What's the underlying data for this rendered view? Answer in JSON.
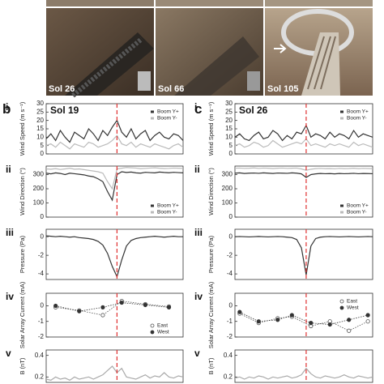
{
  "photos": [
    {
      "label": "Sol 26"
    },
    {
      "label": "Sol 66"
    },
    {
      "label": "Sol 105"
    }
  ],
  "sections": [
    {
      "letter": "b"
    },
    {
      "letter": "c"
    }
  ],
  "chart_data": [
    {
      "type": "line",
      "panel": "i",
      "title": "Sol 19",
      "y_label": "Wind Speed (m s⁻¹)",
      "xlim": [
        0,
        29
      ],
      "ylim": [
        0,
        30
      ],
      "yticks": [
        0,
        5,
        10,
        15,
        20,
        25,
        30
      ],
      "event_x": 15,
      "legend": "upper right",
      "series": [
        {
          "name": "Boom Y+",
          "color": "#333333",
          "values": [
            9,
            12,
            8,
            14,
            10,
            7,
            13,
            11,
            9,
            15,
            12,
            8,
            14,
            11,
            16,
            20,
            13,
            10,
            15,
            9,
            12,
            14,
            8,
            11,
            13,
            10,
            9,
            12,
            11,
            8
          ]
        },
        {
          "name": "Boom Y-",
          "color": "#bbbbbb",
          "values": [
            5,
            6,
            4,
            7,
            5,
            3,
            6,
            5,
            4,
            7,
            6,
            4,
            5,
            6,
            8,
            11,
            6,
            5,
            7,
            4,
            6,
            5,
            4,
            6,
            5,
            4,
            3,
            5,
            6,
            4
          ]
        }
      ]
    },
    {
      "type": "line",
      "panel": "ii",
      "y_label": "Wind Direction (°)",
      "xlim": [
        0,
        29
      ],
      "ylim": [
        0,
        360
      ],
      "yticks": [
        0,
        100,
        200,
        300
      ],
      "event_x": 15,
      "legend": "lower right",
      "series": [
        {
          "name": "Boom Y+",
          "color": "#333333",
          "values": [
            310,
            305,
            312,
            308,
            300,
            310,
            306,
            302,
            298,
            290,
            285,
            270,
            250,
            180,
            120,
            300,
            320,
            315,
            318,
            312,
            310,
            316,
            314,
            312,
            318,
            315,
            313,
            316,
            314,
            312
          ]
        },
        {
          "name": "Boom Y-",
          "color": "#bbbbbb",
          "values": [
            340,
            338,
            342,
            336,
            340,
            345,
            338,
            340,
            335,
            330,
            325,
            320,
            310,
            250,
            200,
            340,
            345,
            350,
            348,
            346,
            342,
            344,
            346,
            348,
            345,
            343,
            344,
            346,
            345,
            344
          ]
        }
      ]
    },
    {
      "type": "line",
      "panel": "iii",
      "y_label": "Pressure (Pa)",
      "xlim": [
        0,
        29
      ],
      "ylim": [
        -4.6,
        0.8
      ],
      "yticks": [
        -4,
        -2,
        0
      ],
      "event_x": 15,
      "series": [
        {
          "color": "#333333",
          "values": [
            0.1,
            0.05,
            0,
            0.05,
            0,
            -0.05,
            0,
            -0.1,
            -0.15,
            -0.2,
            -0.3,
            -0.5,
            -0.9,
            -1.8,
            -3.2,
            -4.3,
            -2.5,
            -1.0,
            -0.4,
            -0.2,
            -0.1,
            -0.05,
            0,
            0.05,
            0,
            -0.05,
            0,
            0.05,
            0,
            0
          ]
        }
      ]
    },
    {
      "type": "line",
      "panel": "iv",
      "y_label": "Solar Array Current (mA)",
      "xlim": [
        0,
        29
      ],
      "ylim": [
        -2,
        0.8
      ],
      "yticks": [
        -2,
        -1,
        0
      ],
      "event_x": 15,
      "legend": "lower right",
      "x": [
        2,
        7,
        12,
        16,
        21,
        26
      ],
      "series": [
        {
          "name": "East",
          "color": "#555555",
          "marker": "open",
          "values": [
            -0.1,
            -0.3,
            -0.6,
            0.3,
            0.1,
            -0.05
          ]
        },
        {
          "name": "West",
          "color": "#333333",
          "marker": "filled",
          "values": [
            0,
            -0.35,
            -0.1,
            0.2,
            0.05,
            -0.1
          ]
        }
      ]
    },
    {
      "type": "line",
      "panel": "v",
      "y_label": "B (nT)",
      "xlim": [
        0,
        29
      ],
      "ylim": [
        0.15,
        0.45
      ],
      "yticks": [
        0.2,
        0.4
      ],
      "event_x": 15,
      "series": [
        {
          "color": "#aaaaaa",
          "values": [
            0.18,
            0.17,
            0.2,
            0.18,
            0.19,
            0.17,
            0.2,
            0.18,
            0.19,
            0.2,
            0.18,
            0.2,
            0.22,
            0.26,
            0.3,
            0.24,
            0.28,
            0.2,
            0.19,
            0.18,
            0.2,
            0.22,
            0.19,
            0.21,
            0.2,
            0.24,
            0.2,
            0.19,
            0.21,
            0.2
          ]
        }
      ]
    },
    {
      "type": "line",
      "panel": "i",
      "title": "Sol 26",
      "y_label": "Wind Speed (m s⁻¹)",
      "xlim": [
        0,
        29
      ],
      "ylim": [
        0,
        30
      ],
      "yticks": [
        0,
        5,
        10,
        15,
        20,
        25,
        30
      ],
      "event_x": 15,
      "legend": "upper right",
      "series": [
        {
          "name": "Boom Y+",
          "color": "#333333",
          "values": [
            10,
            12,
            9,
            8,
            11,
            13,
            9,
            10,
            14,
            12,
            8,
            11,
            9,
            13,
            12,
            17,
            10,
            12,
            11,
            9,
            13,
            10,
            12,
            11,
            9,
            14,
            10,
            12,
            11,
            10
          ]
        },
        {
          "name": "Boom Y-",
          "color": "#bbbbbb",
          "values": [
            5,
            6,
            4,
            5,
            7,
            6,
            4,
            5,
            8,
            6,
            4,
            5,
            6,
            7,
            6,
            9,
            5,
            6,
            5,
            4,
            6,
            5,
            6,
            5,
            4,
            7,
            5,
            6,
            5,
            4
          ]
        }
      ]
    },
    {
      "type": "line",
      "panel": "ii",
      "y_label": "Wind Direction (°)",
      "xlim": [
        0,
        29
      ],
      "ylim": [
        0,
        360
      ],
      "yticks": [
        0,
        100,
        200,
        300
      ],
      "event_x": 15,
      "legend": "lower right",
      "series": [
        {
          "name": "Boom Y+",
          "color": "#333333",
          "values": [
            310,
            312,
            308,
            310,
            311,
            309,
            312,
            310,
            308,
            311,
            310,
            309,
            312,
            310,
            305,
            280,
            300,
            305,
            308,
            306,
            307,
            305,
            308,
            306,
            307,
            309,
            306,
            308,
            307,
            306
          ]
        },
        {
          "name": "Boom Y-",
          "color": "#bbbbbb",
          "values": [
            345,
            346,
            344,
            345,
            347,
            344,
            346,
            345,
            343,
            345,
            346,
            344,
            345,
            346,
            340,
            330,
            338,
            342,
            344,
            342,
            343,
            341,
            344,
            342,
            343,
            345,
            342,
            344,
            343,
            342
          ]
        }
      ]
    },
    {
      "type": "line",
      "panel": "iii",
      "y_label": "Pressure (Pa)",
      "xlim": [
        0,
        29
      ],
      "ylim": [
        -4.6,
        0.8
      ],
      "yticks": [
        -4,
        -2,
        0
      ],
      "event_x": 15,
      "series": [
        {
          "color": "#333333",
          "values": [
            0,
            0.02,
            0,
            -0.02,
            0,
            0.03,
            0,
            -0.02,
            0,
            0.02,
            0,
            -0.05,
            -0.1,
            -0.3,
            -1.2,
            -4.1,
            -1.0,
            -0.2,
            -0.05,
            0,
            0.02,
            0,
            -0.02,
            0,
            0.02,
            0,
            -0.02,
            0,
            0.02,
            0
          ]
        }
      ]
    },
    {
      "type": "line",
      "panel": "iv",
      "y_label": "Solar Array Current (mA)",
      "xlim": [
        0,
        29
      ],
      "ylim": [
        -2,
        0.8
      ],
      "yticks": [
        -2,
        -1,
        0
      ],
      "event_x": 15,
      "legend": "upper right",
      "x": [
        1,
        5,
        9,
        12,
        16,
        20,
        24,
        28
      ],
      "series": [
        {
          "name": "East",
          "color": "#555555",
          "marker": "open",
          "values": [
            -0.5,
            -1.1,
            -0.8,
            -0.7,
            -1.3,
            -1.0,
            -1.6,
            -1.0
          ]
        },
        {
          "name": "West",
          "color": "#333333",
          "marker": "filled",
          "values": [
            -0.4,
            -1.0,
            -0.9,
            -0.6,
            -1.1,
            -1.2,
            -0.9,
            -0.6
          ]
        }
      ]
    },
    {
      "type": "line",
      "panel": "v",
      "y_label": "B (nT)",
      "xlim": [
        0,
        29
      ],
      "ylim": [
        0.15,
        0.45
      ],
      "yticks": [
        0.2,
        0.4
      ],
      "event_x": 15,
      "series": [
        {
          "color": "#aaaaaa",
          "values": [
            0.19,
            0.2,
            0.18,
            0.2,
            0.19,
            0.21,
            0.2,
            0.18,
            0.2,
            0.19,
            0.2,
            0.21,
            0.19,
            0.2,
            0.22,
            0.28,
            0.23,
            0.2,
            0.19,
            0.21,
            0.2,
            0.19,
            0.2,
            0.22,
            0.2,
            0.19,
            0.21,
            0.2,
            0.19,
            0.2
          ]
        }
      ]
    }
  ]
}
